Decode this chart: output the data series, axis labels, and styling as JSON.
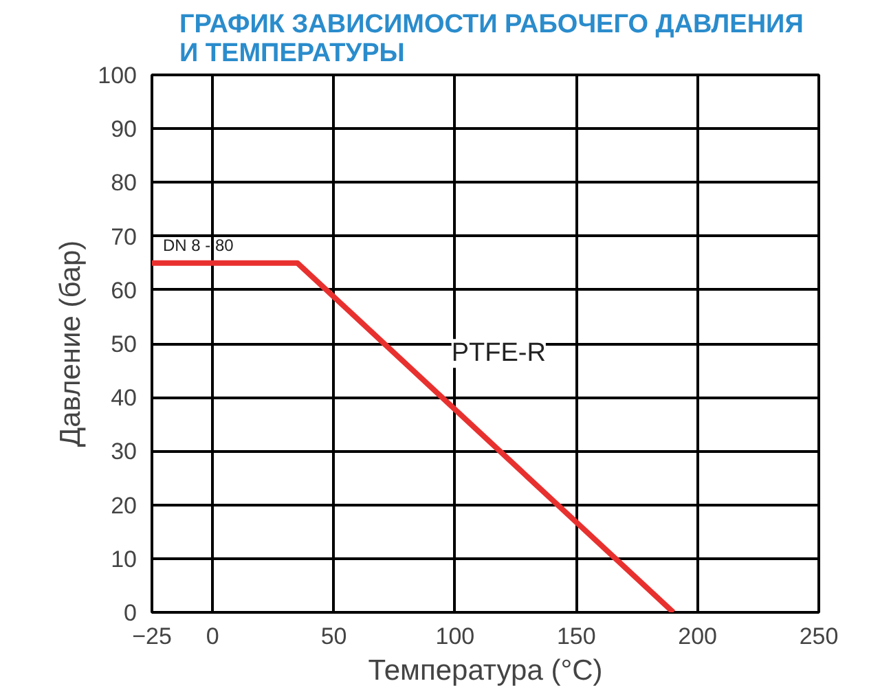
{
  "chart_data": {
    "type": "line",
    "title": "ГРАФИК ЗАВИСИМОСТИ РАБОЧЕГО ДАВЛЕНИЯ\nИ ТЕМПЕРАТУРЫ",
    "xlabel": "Температура (°C)",
    "ylabel": "Давление (бар)",
    "x": [
      -25,
      35,
      190
    ],
    "series": [
      {
        "name": "PTFE-R",
        "color": "#e8312f",
        "values": [
          65,
          65,
          0
        ]
      }
    ],
    "annotations": [
      "DN 8 - 80"
    ],
    "xlim": [
      -25,
      250
    ],
    "xticks": [
      -25,
      0,
      50,
      100,
      150,
      200,
      250
    ],
    "ylim": [
      0,
      100
    ],
    "yticks": [
      0,
      10,
      20,
      30,
      40,
      50,
      60,
      70,
      80,
      90,
      100
    ],
    "grid": true,
    "marker": "none",
    "line_style": "solid"
  }
}
